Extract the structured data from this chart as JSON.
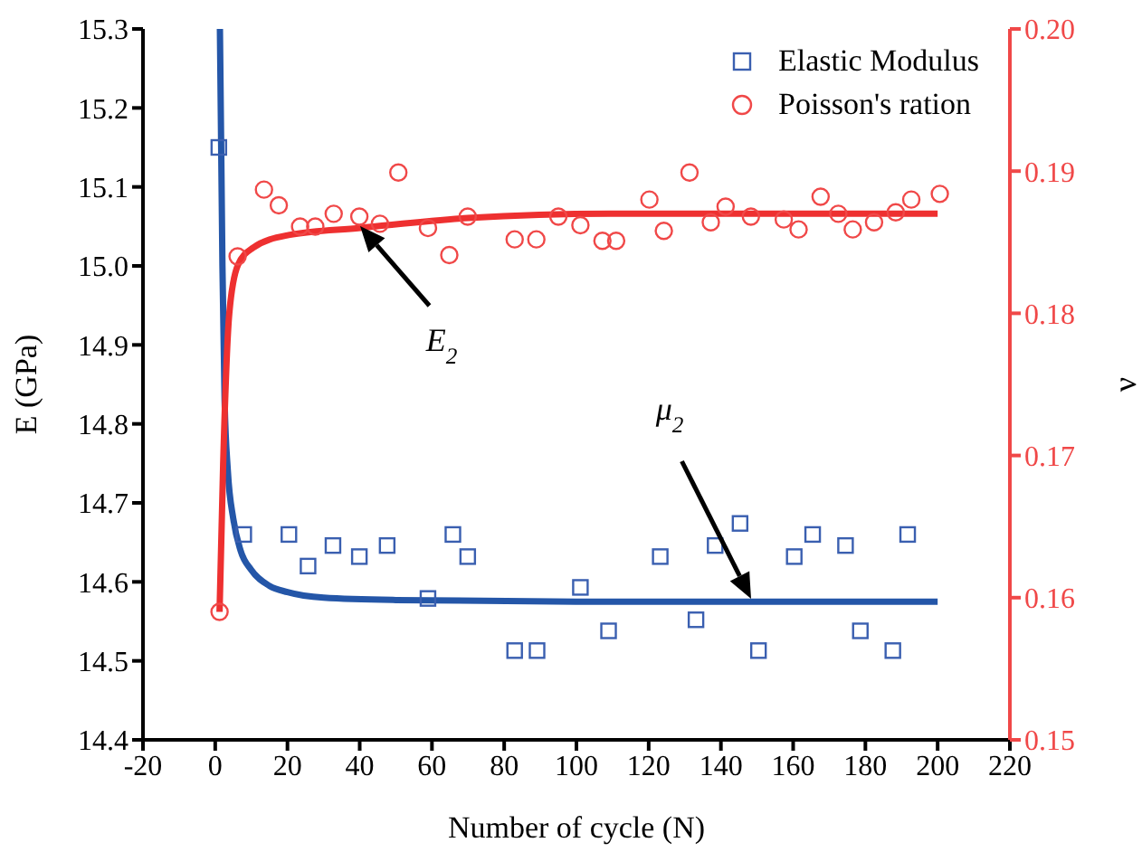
{
  "chart_data": {
    "type": "scatter",
    "xlabel": "Number of cycle (N)",
    "ylabel": "E (GPa)",
    "y2label": "ν",
    "xlim": [
      -20,
      220
    ],
    "xticks": [
      -20,
      0,
      20,
      40,
      60,
      80,
      100,
      120,
      140,
      160,
      180,
      200,
      220
    ],
    "ylim": [
      14.4,
      15.3
    ],
    "yticks": [
      14.4,
      14.5,
      14.6,
      14.7,
      14.8,
      14.9,
      {
        "value": 15,
        "label": "15.0"
      },
      15.1,
      15.2,
      15.3
    ],
    "y2lim": [
      0.15,
      0.2
    ],
    "y2ticks": [
      0.15,
      0.16,
      0.17,
      0.18,
      0.19,
      {
        "value": 0.2,
        "label": "0.20"
      }
    ],
    "legend": "top right",
    "grid": false,
    "series": [
      {
        "name": "Elastic Modulus",
        "type": "scatter",
        "marker": "square",
        "color": "#3a5fb0",
        "x": [
          1,
          7.9,
          20.4,
          25.7,
          32.6,
          39.9,
          47.6,
          58.9,
          65.8,
          69.9,
          82.9,
          89.1,
          101.1,
          108.9,
          123.2,
          133.1,
          138.4,
          145.3,
          150.4,
          160.3,
          165.4,
          174.5,
          178.6,
          187.6,
          191.7
        ],
        "values": [
          15.15,
          14.66,
          14.66,
          14.62,
          14.646,
          14.632,
          14.646,
          14.579,
          14.66,
          14.632,
          14.513,
          14.513,
          14.593,
          14.538,
          14.632,
          14.552,
          14.646,
          14.674,
          14.513,
          14.632,
          14.66,
          14.646,
          14.538,
          14.513,
          14.66
        ]
      },
      {
        "name": "Poisson's ration",
        "type": "scatter",
        "marker": "circle",
        "axis": "y2",
        "color": "#f04848",
        "x": [
          1.2,
          6.2,
          13.5,
          17.6,
          23.5,
          27.7,
          32.8,
          39.9,
          45.6,
          50.7,
          58.9,
          64.8,
          69.9,
          82.9,
          88.9,
          95,
          101.1,
          107.2,
          111,
          120.2,
          124.2,
          131.3,
          137.2,
          141.3,
          148.3,
          157.4,
          161.5,
          167.6,
          172.5,
          176.5,
          182.4,
          188.4,
          192.7,
          200.6
        ],
        "values": [
          0.159,
          0.184,
          0.1887,
          0.1876,
          0.1861,
          0.1861,
          0.187,
          0.1868,
          0.1863,
          0.1899,
          0.186,
          0.1841,
          0.1868,
          0.1852,
          0.1852,
          0.1868,
          0.1862,
          0.1851,
          0.1851,
          0.188,
          0.1858,
          0.1899,
          0.1864,
          0.1875,
          0.1868,
          0.1866,
          0.1859,
          0.1882,
          0.187,
          0.1859,
          0.1864,
          0.1871,
          0.188,
          0.1884
        ]
      },
      {
        "type": "line",
        "color": "#2456a8",
        "marker": "none",
        "x": [
          1.3,
          2,
          2.6,
          3.5,
          5,
          7,
          10,
          15,
          20,
          30,
          50,
          100,
          200
        ],
        "values": [
          15.3,
          15.0,
          14.83,
          14.74,
          14.68,
          14.64,
          14.615,
          14.595,
          14.587,
          14.58,
          14.577,
          14.575,
          14.575
        ]
      },
      {
        "type": "line",
        "color": "#ee3030",
        "marker": "none",
        "axis": "y2",
        "x": [
          1.2,
          2.2,
          3.9,
          6.3,
          10.4,
          20.3,
          40.2,
          69.9,
          109.4,
          200
        ],
        "values": [
          0.159,
          0.1694,
          0.18,
          0.1834,
          0.1846,
          0.1855,
          0.186,
          0.1867,
          0.187,
          0.187
        ]
      }
    ],
    "annotations": [
      "E$_{2}$",
      "μ$_{2}$"
    ]
  }
}
